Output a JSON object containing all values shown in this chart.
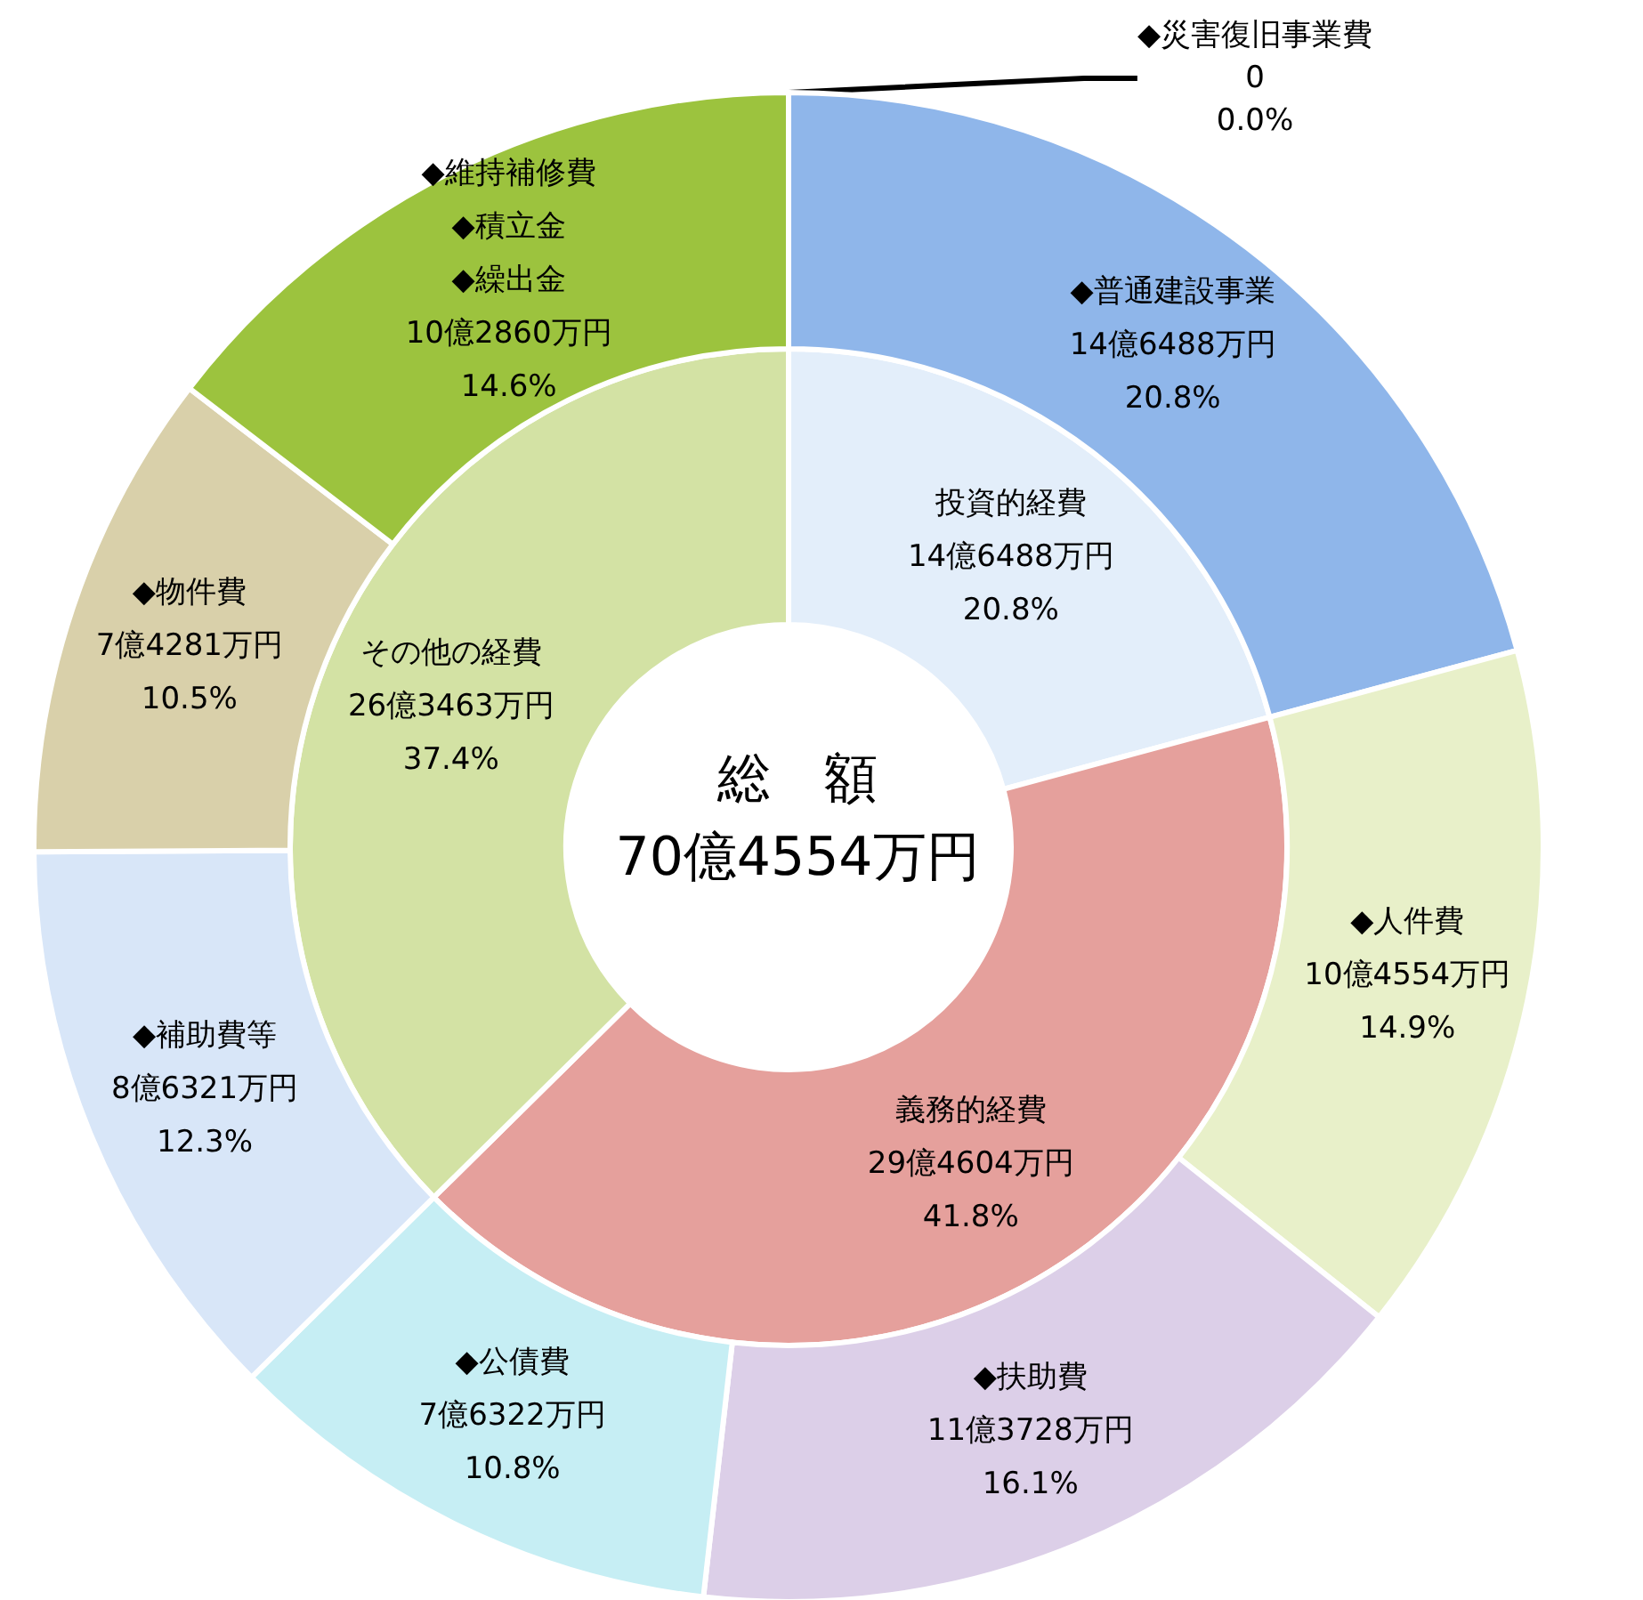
{
  "chart_data": [
    {
      "type": "donut",
      "title": "総　額",
      "subtitle": "70億4554万円",
      "categories": [
        "投資的経費",
        "義務的経費",
        "その他の経費"
      ],
      "values": [
        20.8,
        41.8,
        37.4
      ],
      "colors": [
        "#e3eefa",
        "#e5a09c",
        "#d3e2a4"
      ],
      "value_labels": [
        "14億6488万円\n20.8%",
        "29億4604万円\n41.8%",
        "26億3463万円\n37.4%"
      ]
    },
    {
      "type": "donut",
      "categories": [
        "◆災害復旧事業費",
        "◆普通建設事業",
        "◆人件費",
        "◆扶助費",
        "◆公債費",
        "◆補助費等",
        "◆物件費",
        "◆維持補修費\n◆積立金\n◆繰出金"
      ],
      "values": [
        0,
        20.8,
        14.9,
        16.1,
        10.8,
        12.3,
        10.5,
        14.6
      ],
      "colors": [
        "#8fb6ea",
        "#8fb6ea",
        "#e8f0c9",
        "#dccfe8",
        "#c6eef4",
        "#d8e6f8",
        "#d9d0aa",
        "#9cc33e"
      ],
      "value_labels": [
        "0\n0.0%",
        "14億6488万円\n20.8%",
        "10億4554万円\n14.9%",
        "11億3728万円\n16.1%",
        "7億6322万円\n10.8%",
        "8億6321万円\n12.3%",
        "7億4281万円\n10.5%",
        "10億2860万円\n14.6%"
      ]
    }
  ]
}
